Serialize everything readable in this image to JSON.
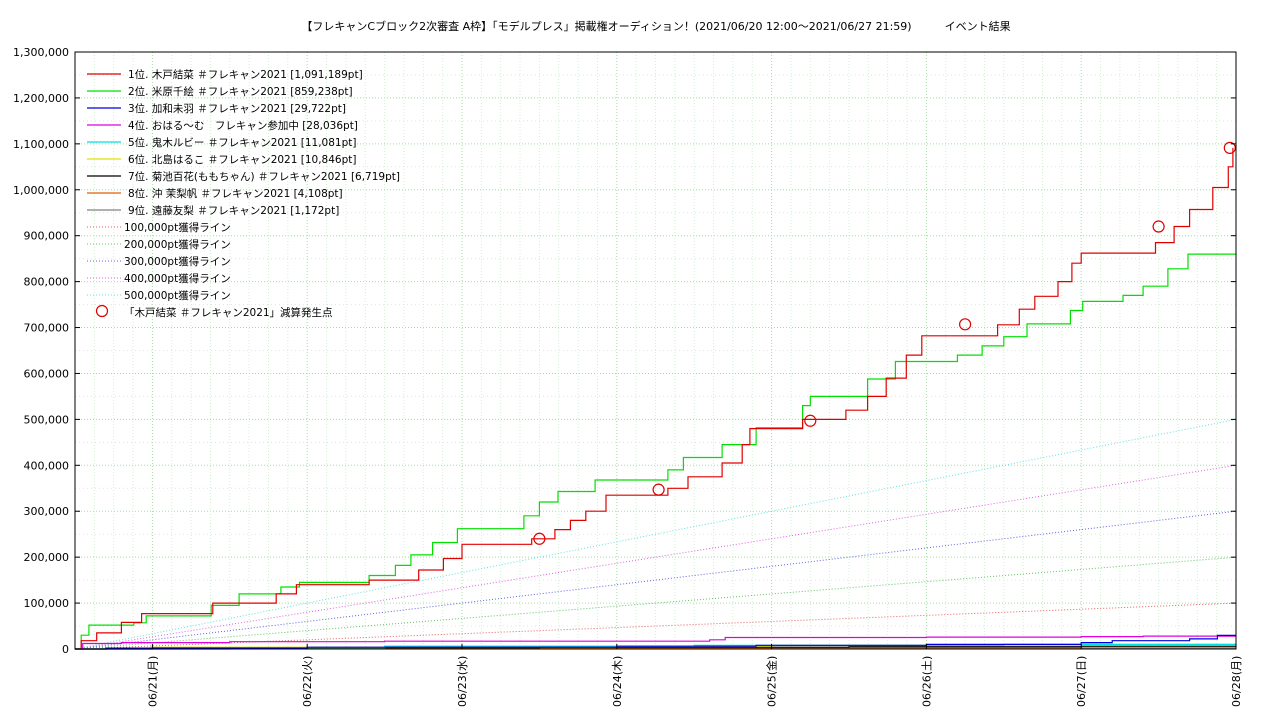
{
  "chart_data": {
    "type": "line",
    "title": "【フレキャンCブロック2次審査 A枠】「モデルプレス」掲載権オーディション！(2021/06/20 12:00〜2021/06/27 21:59)　　　イベント結果",
    "xlabel": "",
    "ylabel": "",
    "x_unit": "days from 2021/06/20 12:00",
    "xlim": [
      0,
      7.5
    ],
    "ylim": [
      0,
      1300000
    ],
    "x_ticks": [
      {
        "value": 0.5,
        "label": "06/21(月)"
      },
      {
        "value": 1.5,
        "label": "06/22(火)"
      },
      {
        "value": 2.5,
        "label": "06/23(水)"
      },
      {
        "value": 3.5,
        "label": "06/24(木)"
      },
      {
        "value": 4.5,
        "label": "06/25(金)"
      },
      {
        "value": 5.5,
        "label": "06/26(土)"
      },
      {
        "value": 6.5,
        "label": "06/27(日)"
      },
      {
        "value": 7.5,
        "label": "06/28(月)"
      }
    ],
    "y_ticks": [
      {
        "value": 0,
        "label": "0"
      },
      {
        "value": 100000,
        "label": "100,000"
      },
      {
        "value": 200000,
        "label": "200,000"
      },
      {
        "value": 300000,
        "label": "300,000"
      },
      {
        "value": 400000,
        "label": "400,000"
      },
      {
        "value": 500000,
        "label": "500,000"
      },
      {
        "value": 600000,
        "label": "600,000"
      },
      {
        "value": 700000,
        "label": "700,000"
      },
      {
        "value": 800000,
        "label": "800,000"
      },
      {
        "value": 900000,
        "label": "900,000"
      },
      {
        "value": 1000000,
        "label": "1,000,000"
      },
      {
        "value": 1100000,
        "label": "1,100,000"
      },
      {
        "value": 1200000,
        "label": "1,200,000"
      },
      {
        "value": 1300000,
        "label": "1,300,000"
      }
    ],
    "grid": true,
    "legend_position": "top-left",
    "series": [
      {
        "name": "1位. 木戸結菜 ＃フレキャン2021 [1,091,189pt]",
        "color": "#e00000",
        "step": true,
        "points": [
          [
            0,
            0
          ],
          [
            0.04,
            18000
          ],
          [
            0.14,
            35000
          ],
          [
            0.3,
            58000
          ],
          [
            0.43,
            77000
          ],
          [
            0.89,
            100000
          ],
          [
            1.3,
            120000
          ],
          [
            1.43,
            140000
          ],
          [
            1.9,
            150000
          ],
          [
            2.22,
            172000
          ],
          [
            2.38,
            197000
          ],
          [
            2.5,
            228000
          ],
          [
            2.95,
            240000
          ],
          [
            3.1,
            260000
          ],
          [
            3.2,
            280000
          ],
          [
            3.3,
            300000
          ],
          [
            3.43,
            335000
          ],
          [
            3.83,
            350000
          ],
          [
            3.96,
            375000
          ],
          [
            4.18,
            405000
          ],
          [
            4.31,
            445000
          ],
          [
            4.36,
            480000
          ],
          [
            4.7,
            500000
          ],
          [
            4.98,
            520000
          ],
          [
            5.12,
            550000
          ],
          [
            5.24,
            590000
          ],
          [
            5.37,
            640000
          ],
          [
            5.47,
            682000
          ],
          [
            5.96,
            706000
          ],
          [
            6.1,
            740000
          ],
          [
            6.2,
            768000
          ],
          [
            6.35,
            800000
          ],
          [
            6.44,
            840000
          ],
          [
            6.5,
            862000
          ],
          [
            6.98,
            885000
          ],
          [
            7.1,
            920000
          ],
          [
            7.2,
            957000
          ],
          [
            7.35,
            1005000
          ],
          [
            7.45,
            1050000
          ],
          [
            7.48,
            1091189
          ]
        ]
      },
      {
        "name": "2位. 米原千絵 ＃フレキャン2021 [859,238pt]",
        "color": "#00e000",
        "step": true,
        "points": [
          [
            0,
            0
          ],
          [
            0.04,
            30000
          ],
          [
            0.09,
            52000
          ],
          [
            0.38,
            57000
          ],
          [
            0.46,
            72000
          ],
          [
            0.88,
            95000
          ],
          [
            1.06,
            120000
          ],
          [
            1.33,
            135000
          ],
          [
            1.45,
            145000
          ],
          [
            1.9,
            160000
          ],
          [
            2.07,
            182000
          ],
          [
            2.17,
            205000
          ],
          [
            2.31,
            232000
          ],
          [
            2.47,
            262000
          ],
          [
            2.9,
            290000
          ],
          [
            3.0,
            320000
          ],
          [
            3.12,
            343000
          ],
          [
            3.36,
            368000
          ],
          [
            3.83,
            390000
          ],
          [
            3.93,
            417000
          ],
          [
            4.18,
            445000
          ],
          [
            4.4,
            482000
          ],
          [
            4.7,
            530000
          ],
          [
            4.75,
            550000
          ],
          [
            5.0,
            550000
          ],
          [
            5.12,
            588000
          ],
          [
            5.3,
            626000
          ],
          [
            5.7,
            640000
          ],
          [
            5.86,
            660000
          ],
          [
            6.0,
            680000
          ],
          [
            6.15,
            708000
          ],
          [
            6.43,
            737000
          ],
          [
            6.51,
            757000
          ],
          [
            6.77,
            770000
          ],
          [
            6.9,
            790000
          ],
          [
            7.06,
            828000
          ],
          [
            7.19,
            860000
          ],
          [
            7.5,
            859238
          ]
        ]
      },
      {
        "name": "3位. 加和未羽 ＃フレキャン2021 [29,722pt]",
        "color": "#0000e0",
        "step": true,
        "points": [
          [
            0,
            0
          ],
          [
            0.2,
            2000
          ],
          [
            1.5,
            4000
          ],
          [
            3.5,
            6000
          ],
          [
            4.4,
            8000
          ],
          [
            5.5,
            10000
          ],
          [
            6.5,
            14000
          ],
          [
            6.7,
            18000
          ],
          [
            7.2,
            22000
          ],
          [
            7.38,
            29722
          ],
          [
            7.5,
            29722
          ]
        ]
      },
      {
        "name": "4位. おはる〜む　フレキャン参加中 [28,036pt]",
        "color": "#e000e0",
        "step": true,
        "points": [
          [
            0,
            0
          ],
          [
            0.05,
            12000
          ],
          [
            0.3,
            14000
          ],
          [
            1.0,
            16000
          ],
          [
            2.0,
            17000
          ],
          [
            2.5,
            17000
          ],
          [
            3.6,
            17000
          ],
          [
            4.1,
            20000
          ],
          [
            4.2,
            25000
          ],
          [
            5.5,
            26000
          ],
          [
            6.5,
            27000
          ],
          [
            6.9,
            28000
          ],
          [
            7.5,
            28036
          ]
        ]
      },
      {
        "name": "5位. 鬼木ルビー ＃フレキャン2021 [11,081pt]",
        "color": "#00e0e0",
        "step": true,
        "points": [
          [
            0,
            0
          ],
          [
            0.5,
            3000
          ],
          [
            2.0,
            6000
          ],
          [
            4.0,
            8000
          ],
          [
            6.0,
            10000
          ],
          [
            7.5,
            11081
          ]
        ]
      },
      {
        "name": "6位. 北島はるこ ＃フレキャン2021 [10,846pt]",
        "color": "#e0e000",
        "step": true,
        "points": [
          [
            0,
            0
          ],
          [
            0.5,
            4000
          ],
          [
            2.0,
            6000
          ],
          [
            4.5,
            8000
          ],
          [
            6.5,
            10000
          ],
          [
            7.5,
            10846
          ]
        ]
      },
      {
        "name": "7位. 菊池百花(ももちゃん) ＃フレキャン2021 [6,719pt]",
        "color": "#000000",
        "step": true,
        "points": [
          [
            0,
            0
          ],
          [
            0.2,
            2000
          ],
          [
            1.5,
            3000
          ],
          [
            3.0,
            4000
          ],
          [
            5.0,
            5000
          ],
          [
            6.5,
            6000
          ],
          [
            7.5,
            6719
          ]
        ]
      },
      {
        "name": "8位. 沖 茉梨帆 ＃フレキャン2021 [4,108pt]",
        "color": "#e06000",
        "step": true,
        "points": [
          [
            0,
            0
          ],
          [
            0.5,
            1000
          ],
          [
            2.5,
            2000
          ],
          [
            4.5,
            3000
          ],
          [
            6.5,
            4000
          ],
          [
            7.5,
            4108
          ]
        ]
      },
      {
        "name": "9位. 遠藤友梨 ＃フレキャン2021 [1,172pt]",
        "color": "#808080",
        "step": true,
        "points": [
          [
            0,
            0
          ],
          [
            1.0,
            500
          ],
          [
            4.0,
            800
          ],
          [
            7.5,
            1172
          ]
        ]
      }
    ],
    "reference_lines": [
      {
        "name": "100,000pt獲得ライン",
        "color": "#e06060",
        "points": [
          [
            0,
            0
          ],
          [
            7.5,
            100000
          ]
        ]
      },
      {
        "name": "200,000pt獲得ライン",
        "color": "#60c060",
        "points": [
          [
            0,
            0
          ],
          [
            7.5,
            200000
          ]
        ]
      },
      {
        "name": "300,000pt獲得ライン",
        "color": "#6060e0",
        "points": [
          [
            0,
            0
          ],
          [
            7.5,
            300000
          ]
        ]
      },
      {
        "name": "400,000pt獲得ライン",
        "color": "#e060e0",
        "points": [
          [
            0,
            0
          ],
          [
            7.5,
            400000
          ]
        ]
      },
      {
        "name": "500,000pt獲得ライン",
        "color": "#60e0e0",
        "points": [
          [
            0,
            0
          ],
          [
            7.5,
            500000
          ]
        ]
      }
    ],
    "markers": {
      "name": "「木戸結菜 ＃フレキャン2021」減算発生点",
      "color": "#e00000",
      "points": [
        [
          3.0,
          240000
        ],
        [
          3.77,
          347000
        ],
        [
          4.75,
          497000
        ],
        [
          5.75,
          707000
        ],
        [
          7.0,
          920000
        ],
        [
          7.46,
          1091189
        ]
      ]
    }
  }
}
